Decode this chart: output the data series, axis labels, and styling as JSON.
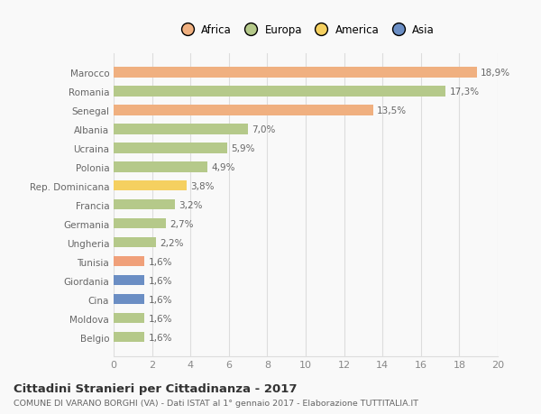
{
  "categories": [
    "Belgio",
    "Moldova",
    "Cina",
    "Giordania",
    "Tunisia",
    "Ungheria",
    "Germania",
    "Francia",
    "Rep. Dominicana",
    "Polonia",
    "Ucraina",
    "Albania",
    "Senegal",
    "Romania",
    "Marocco"
  ],
  "values": [
    1.6,
    1.6,
    1.6,
    1.6,
    1.6,
    2.2,
    2.7,
    3.2,
    3.8,
    4.9,
    5.9,
    7.0,
    13.5,
    17.3,
    18.9
  ],
  "labels": [
    "1,6%",
    "1,6%",
    "1,6%",
    "1,6%",
    "1,6%",
    "2,2%",
    "2,7%",
    "3,2%",
    "3,8%",
    "4,9%",
    "5,9%",
    "7,0%",
    "13,5%",
    "17,3%",
    "18,9%"
  ],
  "colors": [
    "#b5c98a",
    "#b5c98a",
    "#6b8ec4",
    "#6b8ec4",
    "#f0a07a",
    "#b5c98a",
    "#b5c98a",
    "#b5c98a",
    "#f5d060",
    "#b5c98a",
    "#b5c98a",
    "#b5c98a",
    "#f0b080",
    "#b5c98a",
    "#f0b080"
  ],
  "continent_colors": {
    "Africa": "#f0b080",
    "Europa": "#b5c98a",
    "America": "#f5d060",
    "Asia": "#6b8ec4"
  },
  "xlim": [
    0,
    20
  ],
  "xticks": [
    0,
    2,
    4,
    6,
    8,
    10,
    12,
    14,
    16,
    18,
    20
  ],
  "title": "Cittadini Stranieri per Cittadinanza - 2017",
  "subtitle": "COMUNE DI VARANO BORGHI (VA) - Dati ISTAT al 1° gennaio 2017 - Elaborazione TUTTITALIA.IT",
  "background_color": "#f9f9f9",
  "bar_height": 0.55,
  "grid_color": "#dddddd",
  "label_color": "#666666",
  "tick_color": "#888888"
}
